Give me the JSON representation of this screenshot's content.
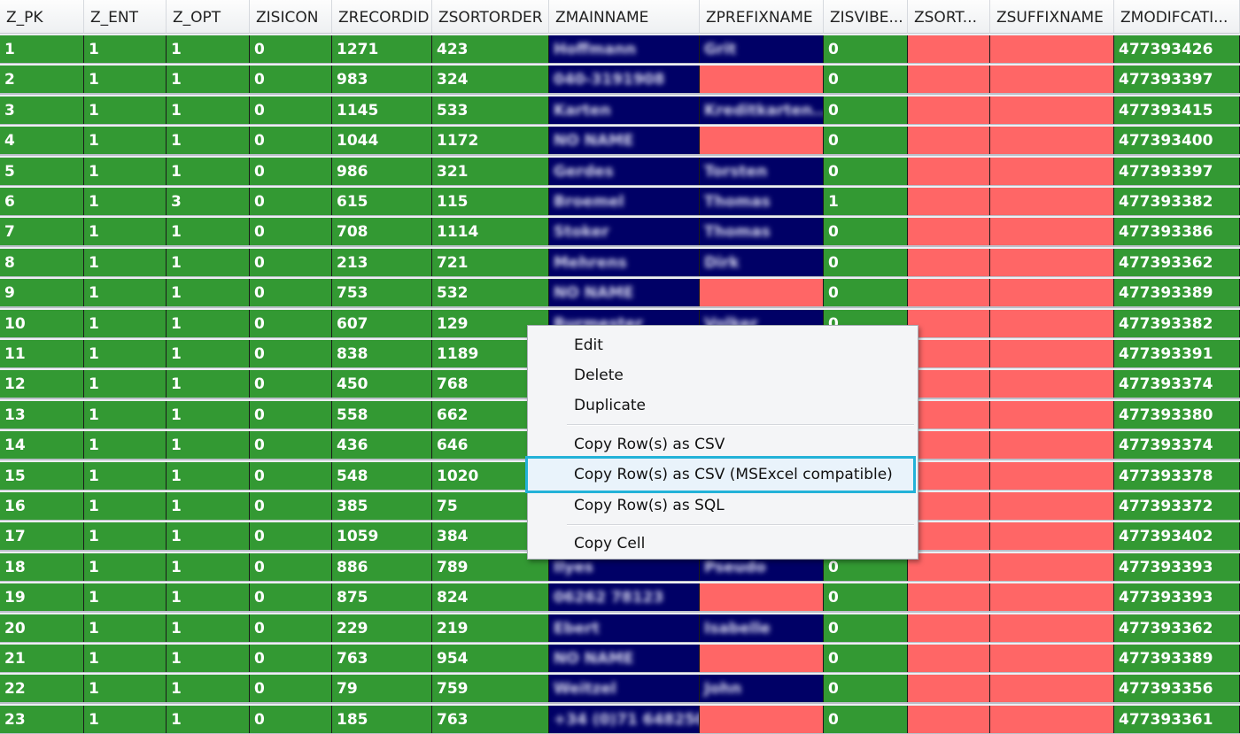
{
  "table": {
    "columns": [
      "Z_PK",
      "Z_ENT",
      "Z_OPT",
      "ZISICON",
      "ZRECORDID",
      "ZSORTORDER",
      "ZMAINNAME",
      "ZPREFIXNAME",
      "ZISVIBE...",
      "ZSORT...",
      "ZSUFFIXNAME",
      "ZMODIFCATI..."
    ],
    "rows": [
      [
        1,
        1,
        1,
        0,
        1271,
        423,
        "Hoffmann",
        "Grit",
        0,
        null,
        null,
        477393426
      ],
      [
        2,
        1,
        1,
        0,
        983,
        324,
        "040-3191908",
        null,
        0,
        null,
        null,
        477393397
      ],
      [
        3,
        1,
        1,
        0,
        1145,
        533,
        "Karten",
        "Kreditkarten...",
        0,
        null,
        null,
        477393415
      ],
      [
        4,
        1,
        1,
        0,
        1044,
        1172,
        "NO NAME",
        null,
        0,
        null,
        null,
        477393400
      ],
      [
        5,
        1,
        1,
        0,
        986,
        321,
        "Gerdes",
        "Torsten",
        0,
        null,
        null,
        477393397
      ],
      [
        6,
        1,
        3,
        0,
        615,
        115,
        "Broemel",
        "Thomas",
        1,
        null,
        null,
        477393382
      ],
      [
        7,
        1,
        1,
        0,
        708,
        1114,
        "Stoker",
        "Thomas",
        0,
        null,
        null,
        477393386
      ],
      [
        8,
        1,
        1,
        0,
        213,
        721,
        "Mehrens",
        "Dirk",
        0,
        null,
        null,
        477393362
      ],
      [
        9,
        1,
        1,
        0,
        753,
        532,
        "NO NAME",
        null,
        0,
        null,
        null,
        477393389
      ],
      [
        10,
        1,
        1,
        0,
        607,
        129,
        "Burmester",
        "Volker",
        0,
        null,
        null,
        477393382
      ],
      [
        11,
        1,
        1,
        0,
        838,
        1189,
        null,
        null,
        null,
        null,
        null,
        477393391
      ],
      [
        12,
        1,
        1,
        0,
        450,
        768,
        null,
        null,
        null,
        null,
        null,
        477393374
      ],
      [
        13,
        1,
        1,
        0,
        558,
        662,
        null,
        null,
        null,
        null,
        null,
        477393380
      ],
      [
        14,
        1,
        1,
        0,
        436,
        646,
        null,
        null,
        null,
        null,
        null,
        477393374
      ],
      [
        15,
        1,
        1,
        0,
        548,
        1020,
        null,
        null,
        null,
        null,
        null,
        477393378
      ],
      [
        16,
        1,
        1,
        0,
        385,
        75,
        null,
        null,
        null,
        null,
        null,
        477393372
      ],
      [
        17,
        1,
        1,
        0,
        1059,
        384,
        null,
        null,
        null,
        null,
        null,
        477393402
      ],
      [
        18,
        1,
        1,
        0,
        886,
        789,
        "Ilyes",
        "Pseudo",
        0,
        null,
        null,
        477393393
      ],
      [
        19,
        1,
        1,
        0,
        875,
        824,
        "06262 78123",
        null,
        0,
        null,
        null,
        477393393
      ],
      [
        20,
        1,
        1,
        0,
        229,
        219,
        "Ebert",
        "Isabelle",
        0,
        null,
        null,
        477393362
      ],
      [
        21,
        1,
        1,
        0,
        763,
        954,
        "NO NAME",
        null,
        0,
        null,
        null,
        477393389
      ],
      [
        22,
        1,
        1,
        0,
        79,
        759,
        "Weitzel",
        "John",
        0,
        null,
        null,
        477393356
      ],
      [
        23,
        1,
        1,
        0,
        185,
        763,
        "+34 (0)71 648250",
        null,
        0,
        null,
        null,
        477393361
      ]
    ]
  },
  "menu": {
    "items": [
      "Edit",
      "Delete",
      "Duplicate",
      "Copy Row(s) as CSV",
      "Copy Row(s) as CSV (MSExcel compatible)",
      "Copy Row(s) as SQL",
      "Copy Cell"
    ]
  }
}
